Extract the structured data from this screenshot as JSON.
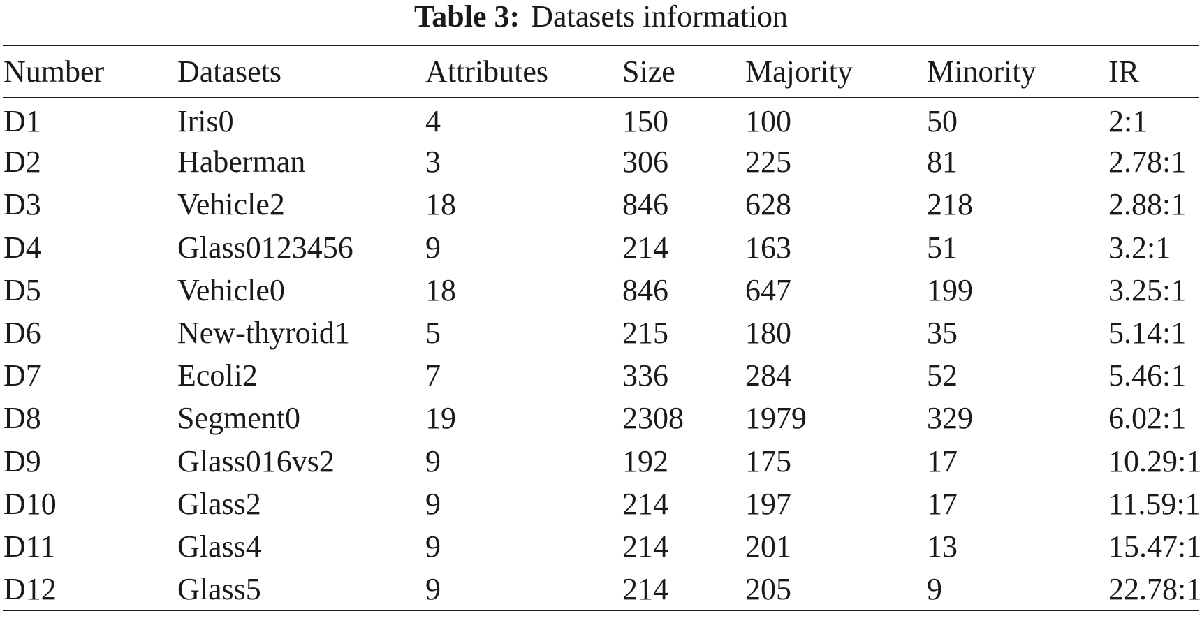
{
  "caption": {
    "label": "Table 3:",
    "text": "Datasets information"
  },
  "table": {
    "headers": [
      "Number",
      "Datasets",
      "Attributes",
      "Size",
      "Majority",
      "Minority",
      "IR"
    ],
    "rows": [
      [
        "D1",
        "Iris0",
        "4",
        "150",
        "100",
        "50",
        "2:1"
      ],
      [
        "D2",
        "Haberman",
        "3",
        "306",
        "225",
        "81",
        "2.78:1"
      ],
      [
        "D3",
        "Vehicle2",
        "18",
        "846",
        "628",
        "218",
        "2.88:1"
      ],
      [
        "D4",
        "Glass0123456",
        "9",
        "214",
        "163",
        "51",
        "3.2:1"
      ],
      [
        "D5",
        "Vehicle0",
        "18",
        "846",
        "647",
        "199",
        "3.25:1"
      ],
      [
        "D6",
        "New-thyroid1",
        "5",
        "215",
        "180",
        "35",
        "5.14:1"
      ],
      [
        "D7",
        "Ecoli2",
        "7",
        "336",
        "284",
        "52",
        "5.46:1"
      ],
      [
        "D8",
        "Segment0",
        "19",
        "2308",
        "1979",
        "329",
        "6.02:1"
      ],
      [
        "D9",
        "Glass016vs2",
        "9",
        "192",
        "175",
        "17",
        "10.29:1"
      ],
      [
        "D10",
        "Glass2",
        "9",
        "214",
        "197",
        "17",
        "11.59:1"
      ],
      [
        "D11",
        "Glass4",
        "9",
        "214",
        "201",
        "13",
        "15.47:1"
      ],
      [
        "D12",
        "Glass5",
        "9",
        "214",
        "205",
        "9",
        "22.78:1"
      ]
    ]
  }
}
